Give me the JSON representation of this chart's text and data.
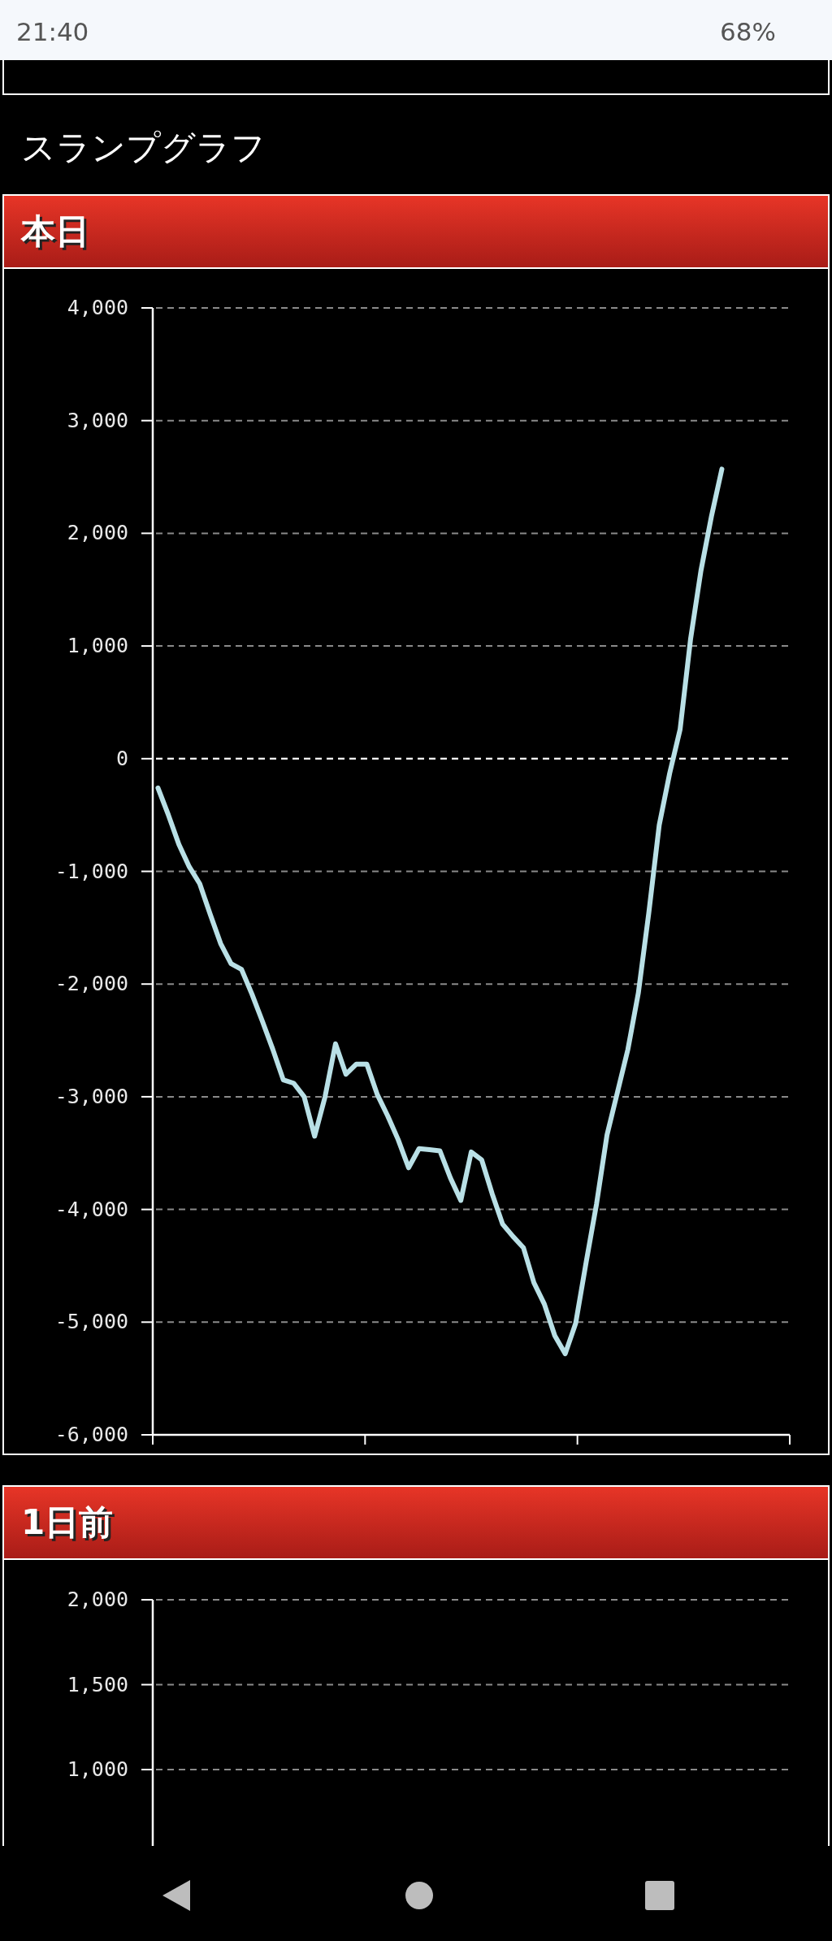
{
  "chart_data": [
    {
      "type": "line",
      "title": "本日",
      "annotations": [
        "スランプグラフ",
        "21:40",
        "68%"
      ],
      "categories": [
        null,
        null,
        null,
        null,
        null,
        null,
        null,
        null,
        null,
        null,
        null,
        null,
        null,
        null,
        null,
        null,
        null,
        null,
        null,
        null,
        null,
        null,
        null,
        null,
        null,
        null,
        null,
        null,
        null,
        null,
        null,
        null,
        null,
        null,
        null,
        null,
        null,
        null,
        null,
        null,
        null,
        null,
        null,
        null,
        null,
        null,
        null,
        null,
        null,
        null,
        null,
        null,
        null,
        null,
        null,
        null,
        null,
        null,
        null,
        null,
        null
      ],
      "ylim": [
        -6000,
        4000
      ],
      "yticks": [
        {
          "value": 4000,
          "label": "4,000"
        },
        {
          "value": 3000,
          "label": "3,000"
        },
        {
          "value": 2000,
          "label": "2,000"
        },
        {
          "value": 1000,
          "label": "1,000"
        },
        0,
        {
          "value": -1000,
          "label": "-1,000"
        },
        {
          "value": -2000,
          "label": "-2,000"
        },
        {
          "value": -3000,
          "label": "-3,000"
        },
        {
          "value": -4000,
          "label": "-4,000"
        },
        {
          "value": -5000,
          "label": "-5,000"
        },
        {
          "value": -6000,
          "label": "-6,000"
        }
      ],
      "grid": "y",
      "ref_lines": [
        {
          "axis": "y",
          "value": 0,
          "color": "#ffffff",
          "line_style": "dashed"
        }
      ],
      "series": [
        {
          "color": "#b9e0e6",
          "values": [
            -260,
            -500,
            -760,
            -960,
            -1110,
            -1380,
            -1640,
            -1820,
            -1870,
            -2090,
            -2330,
            -2580,
            -2850,
            -2880,
            -3000,
            -3350,
            -3000,
            -2530,
            -2800,
            -2710,
            -2710,
            -2980,
            -3170,
            -3380,
            -3630,
            -3460,
            -3470,
            -3480,
            -3720,
            -3920,
            -3490,
            -3560,
            -3860,
            -4130,
            -4240,
            -4340,
            -4650,
            -4840,
            -5120,
            -5280,
            -5010,
            -4470,
            -3950,
            -3340,
            -2960,
            -2580,
            -2080,
            -1370,
            -590,
            -130,
            260,
            1060,
            1670,
            2150,
            2570,
            null,
            null,
            null,
            null,
            null,
            null
          ]
        }
      ]
    },
    {
      "type": "other",
      "title": "1日前",
      "annotations": [
        "2,000",
        "1,500",
        "1,000"
      ]
    }
  ]
}
